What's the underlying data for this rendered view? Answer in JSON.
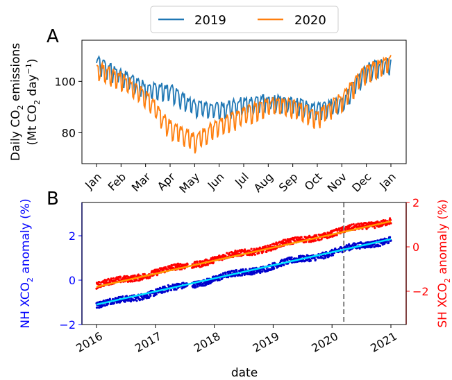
{
  "chart_data": [
    {
      "type": "line",
      "panel_label": "A",
      "ylabel_line1": "Daily CO",
      "ylabel_line1_sub": "2",
      "ylabel_line1_end": " emissions",
      "ylabel_line2_a": "(Mt CO",
      "ylabel_line2_sub": "2",
      "ylabel_line2_b": " day",
      "ylabel_line2_sup": "−1",
      "ylabel_line2_c": ")",
      "x_tick_labels": [
        "Jan",
        "Feb",
        "Mar",
        "Apr",
        "May",
        "Jun",
        "Jul",
        "Aug",
        "Sep",
        "Oct",
        "Nov",
        "Dec",
        "Jan"
      ],
      "y_ticks": [
        80,
        100
      ],
      "ylim": [
        68,
        116
      ],
      "legend": {
        "placement": "top-center",
        "entries": [
          {
            "name": "2019",
            "color": "#1f77b4"
          },
          {
            "name": "2020",
            "color": "#ff7f0e"
          }
        ]
      },
      "series": [
        {
          "name": "2019",
          "color": "#1f77b4",
          "monthly_level": [
            109,
            104,
            99,
            98,
            92,
            91,
            93,
            94,
            93,
            91,
            93,
            106,
            109
          ],
          "weekly_dip": 5.5
        },
        {
          "name": "2020",
          "color": "#ff7f0e",
          "monthly_level": [
            107,
            103,
            96,
            84,
            79,
            85,
            89,
            93,
            92,
            88,
            95,
            106,
            110
          ],
          "weekly_dip": 6
        }
      ]
    },
    {
      "type": "scatter",
      "panel_label": "B",
      "xlabel": "date",
      "x_tick_labels": [
        "2016",
        "2017",
        "2018",
        "2019",
        "2020",
        "2021"
      ],
      "left_axis": {
        "label_a": "NH XCO",
        "label_sub": "2",
        "label_b": " anomaly (%)",
        "color": "#0000ff",
        "ticks": [
          -2,
          0,
          2
        ],
        "ylim": [
          -2,
          3.5
        ]
      },
      "right_axis": {
        "label_a": "SH XCO",
        "label_sub": "2",
        "label_b": " anomaly (%)",
        "color": "#ff0000",
        "ticks": [
          -2,
          0,
          2
        ],
        "ylim": [
          -3.5,
          2
        ]
      },
      "vline_year": 2020.2,
      "series": [
        {
          "name": "NH points",
          "axis": "left",
          "color": "#0000cc",
          "start": -1.15,
          "end": 1.85
        },
        {
          "name": "NH fit",
          "axis": "left",
          "color": "#00e5ff",
          "start": -1.1,
          "end": 1.85
        },
        {
          "name": "SH points",
          "axis": "right",
          "color": "#ff0000",
          "start": -1.75,
          "end": 1.2
        },
        {
          "name": "SH fit",
          "axis": "right",
          "color": "#ff9900",
          "start": -1.8,
          "end": 1.15
        }
      ]
    }
  ]
}
